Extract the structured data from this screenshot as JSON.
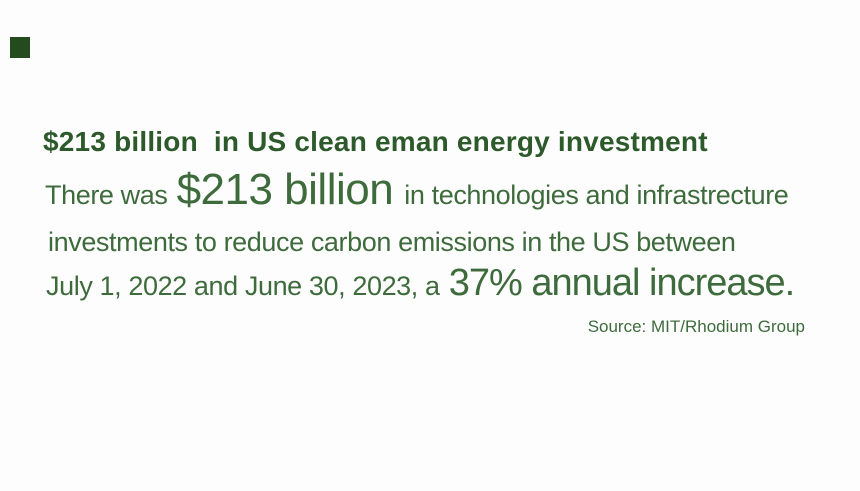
{
  "slide": {
    "headline": "$213 billion  in US clean eman energy investment",
    "body": {
      "line1_pre": "There was ",
      "line1_big": "$213 billion",
      "line1_post": " in technologies and infrastrecture",
      "line2": "investments to reduce carbon emissions in the US between",
      "line3_pre": "July 1, 2022 and June 30, 2023, a ",
      "line3_big": "37% annual increase."
    },
    "source": "Source: MIT/Rhodium Group",
    "colors": {
      "headline_green": "#2d5a2b",
      "body_green": "#3e6b3c",
      "corner_square_green": "#234b1e",
      "background": "#fdfdfd"
    }
  }
}
